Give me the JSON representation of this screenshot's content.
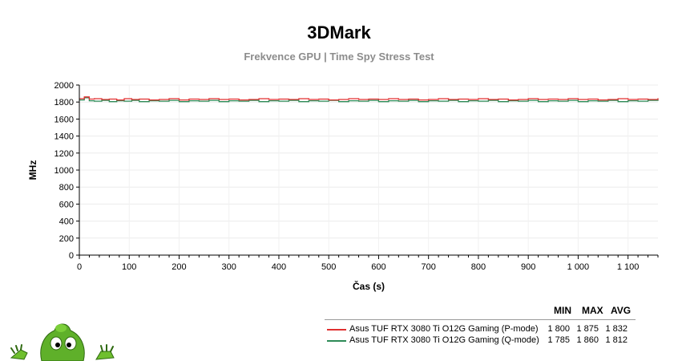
{
  "title": "3DMark",
  "subtitle": "Frekvence GPU | Time Spy Stress Test",
  "legend": {
    "headers": [
      "MIN",
      "MAX",
      "AVG"
    ],
    "rows": [
      {
        "name": "Asus TUF RTX 3080 Ti O12G Gaming (P-mode)",
        "color": "#e03030",
        "min": "1 800",
        "max": "1 875",
        "avg": "1 832"
      },
      {
        "name": "Asus TUF RTX 3080 Ti O12G Gaming (Q-mode)",
        "color": "#2e8b57",
        "min": "1 785",
        "max": "1 860",
        "avg": "1 812"
      }
    ]
  },
  "chart_data": {
    "type": "line",
    "xlabel": "Čas (s)",
    "ylabel": "MHz",
    "xlim": [
      0,
      1160
    ],
    "ylim": [
      0,
      2000
    ],
    "x_ticks": [
      0,
      100,
      200,
      300,
      400,
      500,
      600,
      700,
      800,
      900,
      1000,
      1100
    ],
    "x_tick_labels": [
      "0",
      "100",
      "200",
      "300",
      "400",
      "500",
      "600",
      "700",
      "800",
      "900",
      "1 000",
      "1 100"
    ],
    "y_ticks": [
      0,
      200,
      400,
      600,
      800,
      1000,
      1200,
      1400,
      1600,
      1800,
      2000
    ],
    "y_tick_labels": [
      "0",
      "200",
      "400",
      "600",
      "800",
      "1000",
      "1200",
      "1400",
      "1600",
      "1800",
      "2000"
    ],
    "grid": true,
    "series": [
      {
        "name": "Asus TUF RTX 3080 Ti O12G Gaming (P-mode)",
        "color": "#e03030",
        "x": [
          0,
          10,
          20,
          30,
          45,
          60,
          75,
          90,
          105,
          120,
          140,
          160,
          180,
          200,
          220,
          240,
          260,
          280,
          300,
          320,
          340,
          360,
          380,
          400,
          420,
          440,
          460,
          480,
          500,
          520,
          540,
          560,
          580,
          600,
          620,
          640,
          660,
          680,
          700,
          720,
          740,
          760,
          780,
          800,
          820,
          840,
          860,
          880,
          900,
          920,
          940,
          960,
          980,
          1000,
          1020,
          1040,
          1060,
          1080,
          1100,
          1120,
          1140,
          1160
        ],
        "y": [
          1840,
          1860,
          1835,
          1840,
          1830,
          1835,
          1825,
          1840,
          1830,
          1835,
          1825,
          1830,
          1840,
          1825,
          1835,
          1830,
          1840,
          1830,
          1835,
          1825,
          1830,
          1840,
          1830,
          1835,
          1830,
          1840,
          1830,
          1835,
          1825,
          1830,
          1840,
          1830,
          1835,
          1830,
          1840,
          1830,
          1835,
          1825,
          1830,
          1840,
          1830,
          1835,
          1830,
          1840,
          1830,
          1835,
          1825,
          1830,
          1840,
          1830,
          1835,
          1830,
          1840,
          1830,
          1835,
          1825,
          1830,
          1840,
          1830,
          1835,
          1830,
          1845
        ]
      },
      {
        "name": "Asus TUF RTX 3080 Ti O12G Gaming (Q-mode)",
        "color": "#2e8b57",
        "x": [
          0,
          10,
          20,
          30,
          45,
          60,
          75,
          90,
          105,
          120,
          140,
          160,
          180,
          200,
          220,
          240,
          260,
          280,
          300,
          320,
          340,
          360,
          380,
          400,
          420,
          440,
          460,
          480,
          500,
          520,
          540,
          560,
          580,
          600,
          620,
          640,
          660,
          680,
          700,
          720,
          740,
          760,
          780,
          800,
          820,
          840,
          860,
          880,
          900,
          920,
          940,
          960,
          980,
          1000,
          1020,
          1040,
          1060,
          1080,
          1100,
          1120,
          1140,
          1160
        ],
        "y": [
          1825,
          1850,
          1815,
          1810,
          1820,
          1805,
          1815,
          1810,
          1820,
          1805,
          1815,
          1810,
          1820,
          1805,
          1815,
          1810,
          1820,
          1805,
          1815,
          1810,
          1820,
          1805,
          1815,
          1810,
          1820,
          1805,
          1815,
          1810,
          1820,
          1805,
          1815,
          1810,
          1820,
          1805,
          1815,
          1810,
          1820,
          1805,
          1815,
          1810,
          1820,
          1805,
          1815,
          1810,
          1820,
          1805,
          1815,
          1810,
          1820,
          1805,
          1815,
          1810,
          1820,
          1805,
          1815,
          1810,
          1820,
          1805,
          1815,
          1810,
          1820,
          1830
        ]
      }
    ]
  }
}
